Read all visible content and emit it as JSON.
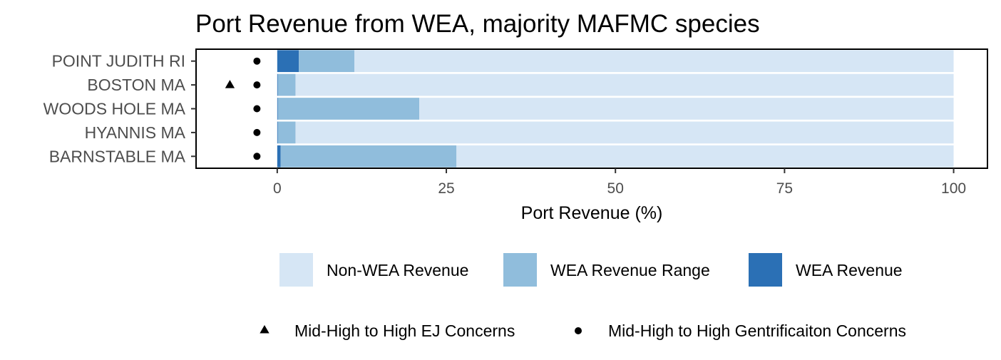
{
  "chart_data": {
    "type": "bar",
    "orientation": "horizontal",
    "stacked": true,
    "title": "Port Revenue from WEA, majority MAFMC species",
    "xlabel": "Port Revenue (%)",
    "ylabel": "",
    "xlim": [
      -12,
      105
    ],
    "x_ticks": [
      0,
      25,
      50,
      75,
      100
    ],
    "x_tick_labels": [
      "0",
      "25",
      "50",
      "75",
      "100"
    ],
    "categories": [
      "POINT JUDITH RI",
      "BOSTON MA",
      "WOODS HOLE MA",
      "HYANNIS MA",
      "BARNSTABLE MA"
    ],
    "series": [
      {
        "name": "WEA Revenue",
        "color": "#2b70b5",
        "values": [
          3.2,
          0.1,
          0.1,
          0.1,
          0.5
        ]
      },
      {
        "name": "WEA Revenue Range",
        "color": "#90bddc",
        "values": [
          8.2,
          2.6,
          20.9,
          2.6,
          26.0
        ]
      },
      {
        "name": "Non-WEA Revenue",
        "color": "#d6e6f5",
        "values": [
          88.6,
          97.3,
          79.0,
          97.3,
          73.5
        ]
      }
    ],
    "legend_order": [
      "Non-WEA Revenue",
      "WEA Revenue Range",
      "WEA Revenue"
    ],
    "markers": {
      "ej": {
        "label": "Mid-High to High EJ Concerns",
        "shape": "triangle",
        "x": -7,
        "categories": [
          "BOSTON MA"
        ]
      },
      "gentrification": {
        "label": "Mid-High to High Gentrificaiton Concerns",
        "shape": "circle",
        "x": -3,
        "categories": [
          "POINT JUDITH RI",
          "BOSTON MA",
          "WOODS HOLE MA",
          "HYANNIS MA",
          "BARNSTABLE MA"
        ]
      }
    },
    "grid": false,
    "legend_position": "bottom"
  }
}
